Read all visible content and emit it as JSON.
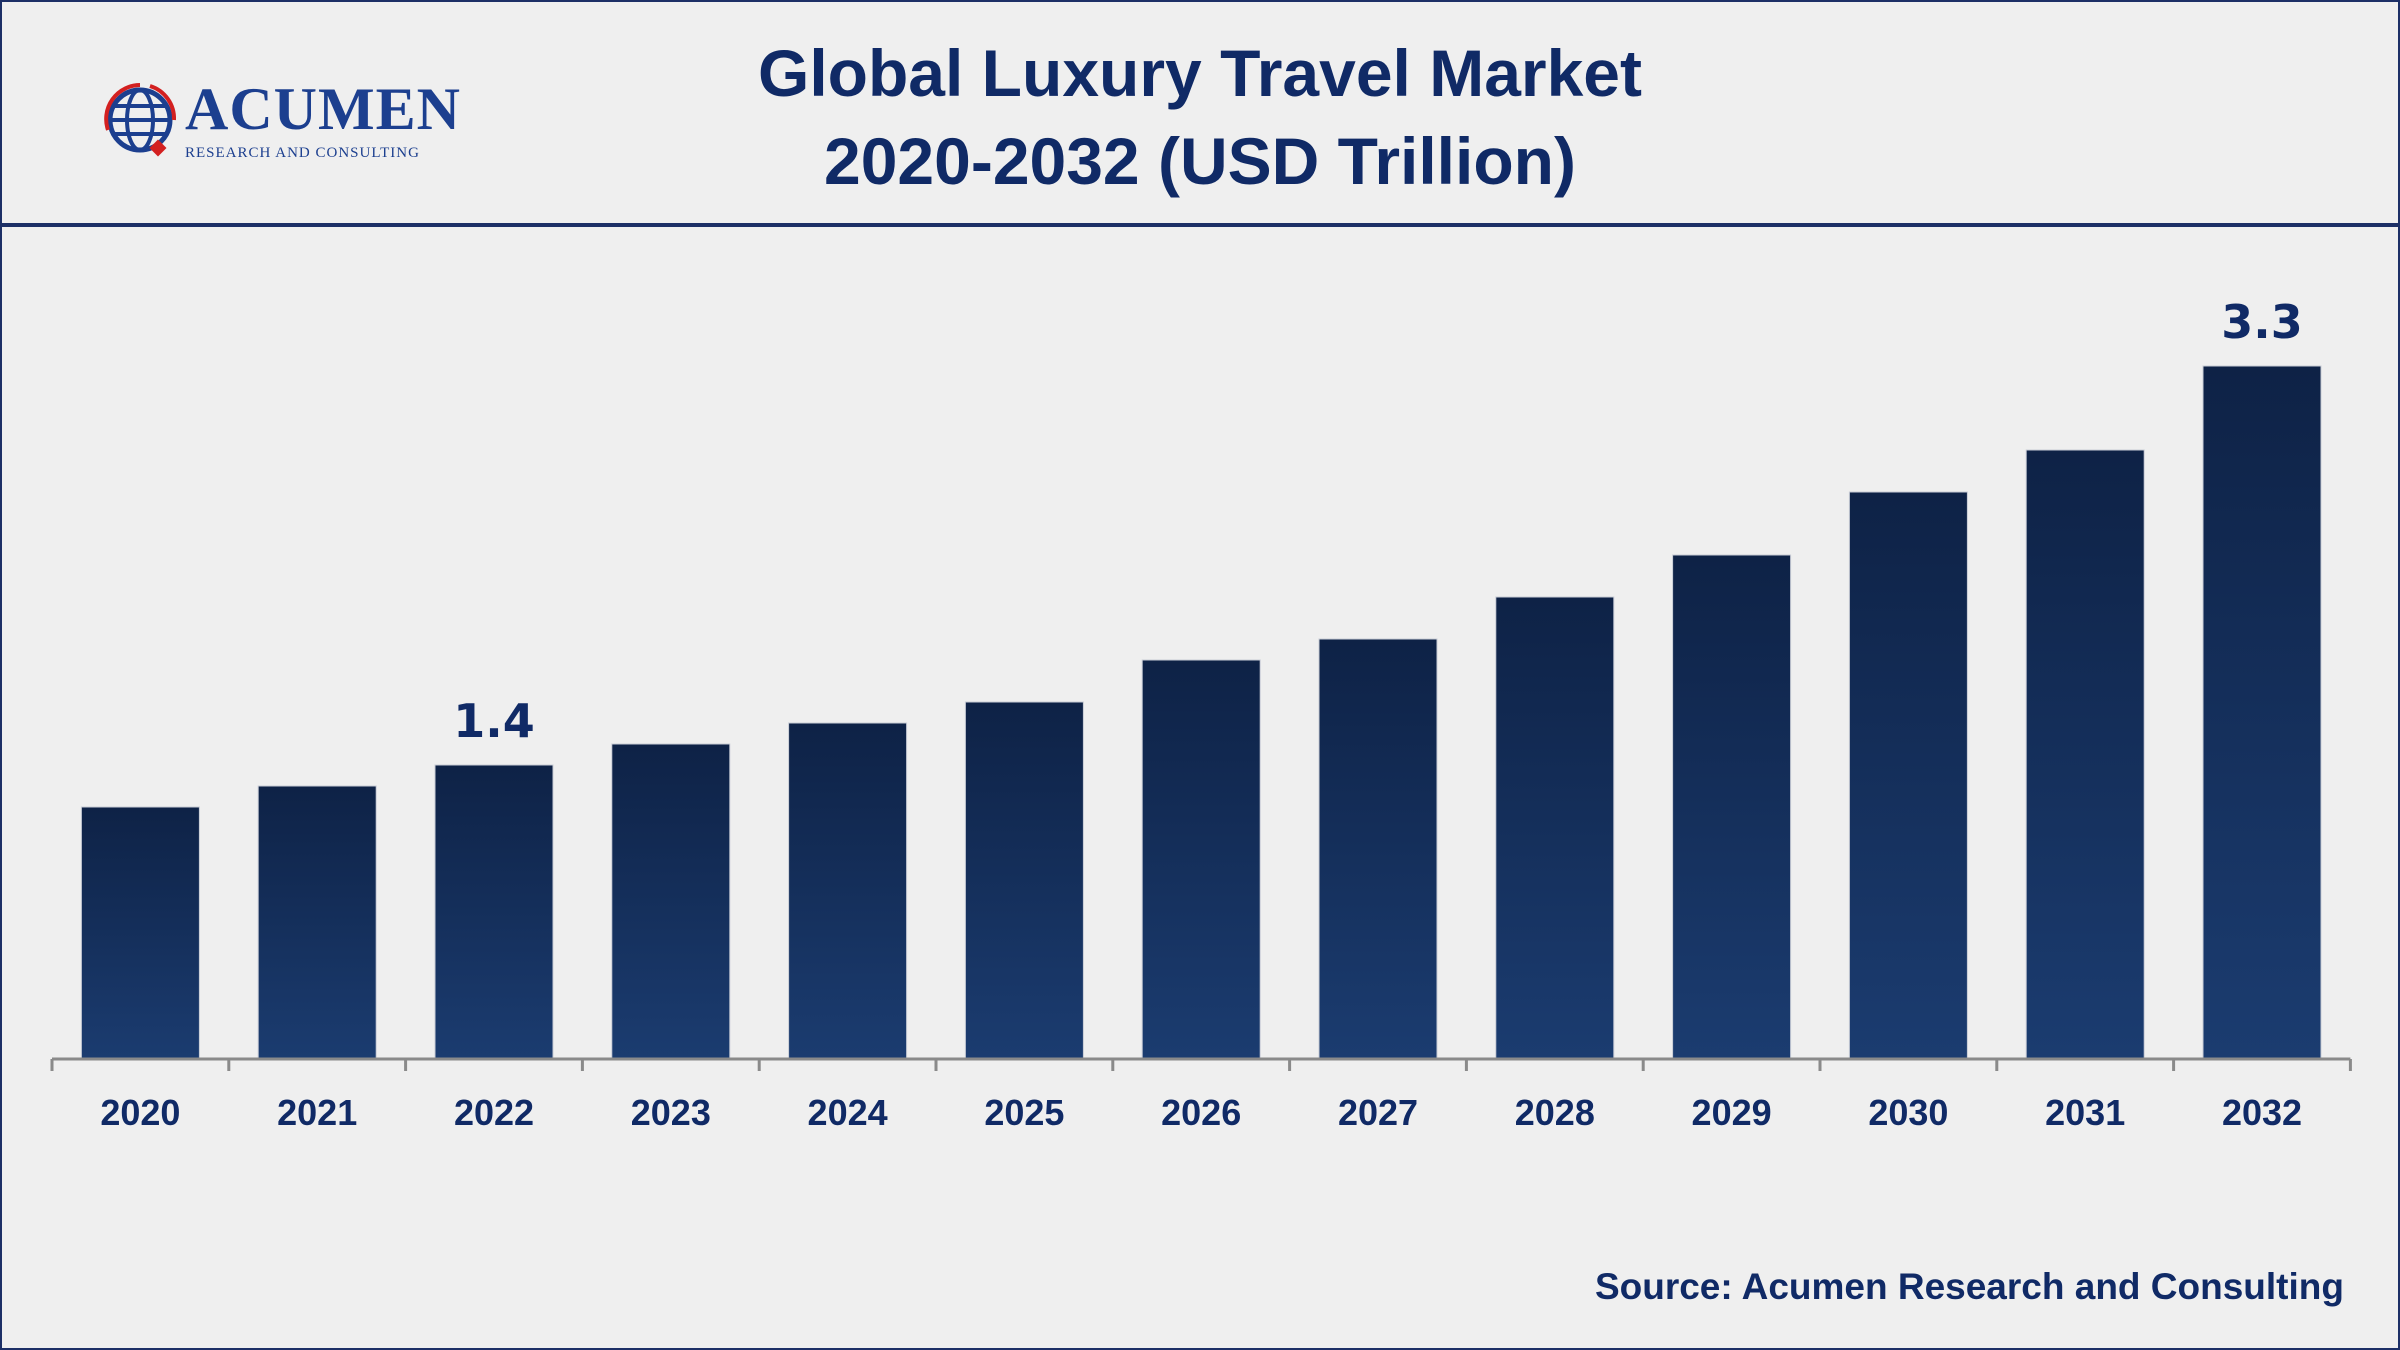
{
  "header": {
    "title_line1": "Global Luxury Travel Market",
    "title_line2": "2020-2032 (USD Trillion)",
    "logo_name": "ACUMEN",
    "logo_tagline": "RESEARCH AND CONSULTING"
  },
  "source": "Source: Acumen Research and Consulting",
  "colors": {
    "bar_top": "#0e2246",
    "bar_bottom": "#1a3a6e",
    "text": "#102a66"
  },
  "chart_data": {
    "type": "bar",
    "title": "Global Luxury Travel Market 2020-2032 (USD Trillion)",
    "categories": [
      "2020",
      "2021",
      "2022",
      "2023",
      "2024",
      "2025",
      "2026",
      "2027",
      "2028",
      "2029",
      "2030",
      "2031",
      "2032"
    ],
    "values": [
      1.2,
      1.3,
      1.4,
      1.5,
      1.6,
      1.7,
      1.9,
      2.0,
      2.2,
      2.4,
      2.7,
      2.9,
      3.3
    ],
    "data_labels": {
      "2022": "1.4",
      "2032": "3.3"
    },
    "xlabel": "",
    "ylabel": "",
    "ylim": [
      0,
      3.3
    ],
    "grid": false,
    "legend": "none"
  }
}
